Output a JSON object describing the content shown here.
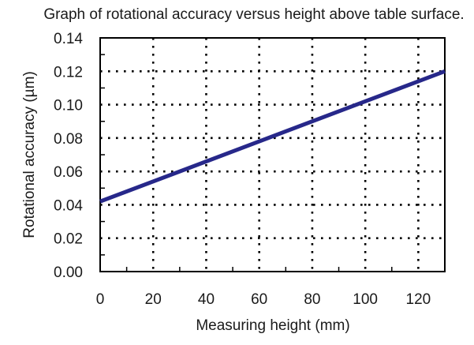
{
  "chart_data": {
    "type": "line",
    "title": "Graph of rotational accuracy versus height above table surface.",
    "xlabel": "Measuring height (mm)",
    "ylabel": "Rotational accuracy (µm)",
    "xlim": [
      0,
      130
    ],
    "ylim": [
      0,
      0.14
    ],
    "x_ticks": [
      0,
      20,
      40,
      60,
      80,
      100,
      120
    ],
    "x_tick_labels": [
      "0",
      "20",
      "40",
      "60",
      "80",
      "100",
      "120"
    ],
    "y_ticks": [
      0,
      0.02,
      0.04,
      0.06,
      0.08,
      0.1,
      0.12,
      0.14
    ],
    "y_tick_labels": [
      "0.00",
      "0.02",
      "0.04",
      "0.06",
      "0.08",
      "0.10",
      "0.12",
      "0.14"
    ],
    "grid": true,
    "grid_style": "dotted",
    "series": [
      {
        "x": [
          0,
          130
        ],
        "y": [
          0.042,
          0.12
        ],
        "color": "#27288a"
      }
    ]
  }
}
